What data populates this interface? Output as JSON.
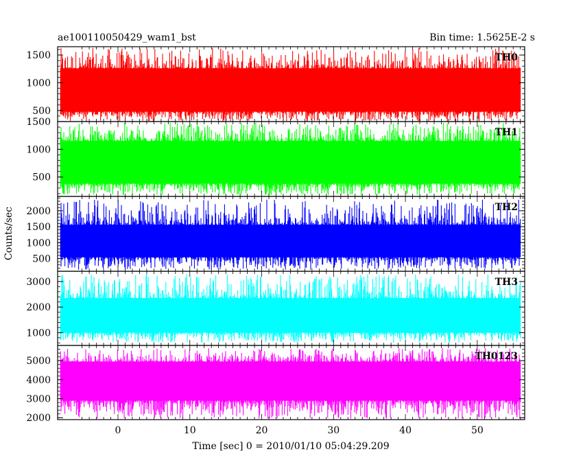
{
  "title_left": "ae100110050429_wam1_bst",
  "title_right": "Bin time: 1.5625E-2 s",
  "ylabel": "Counts/sec",
  "xlabel": "Time [sec] 0 = 2010/01/10 05:04:29.209",
  "colors": {
    "TH0": "#ff0000",
    "TH1": "#00ff00",
    "TH2": "#0000ff",
    "TH3": "#00ffff",
    "TH0123": "#ff00ff"
  },
  "chart_data": {
    "type": "line",
    "x_range": [
      -8.4,
      56.6
    ],
    "data_x_range": [
      -8.0,
      56.0
    ],
    "x_ticks": [
      0,
      10,
      20,
      30,
      40,
      50
    ],
    "panels": [
      {
        "name": "TH0",
        "ylim": [
          300,
          1650
        ],
        "y_ticks": [
          500,
          1000,
          1500
        ],
        "mean": 820,
        "low": 480,
        "high": 1260,
        "max": 1630,
        "min": 300
      },
      {
        "name": "TH1",
        "ylim": [
          150,
          1500
        ],
        "y_ticks": [
          500,
          1000,
          1500
        ],
        "mean": 720,
        "low": 380,
        "high": 1150,
        "max": 1480,
        "min": 170
      },
      {
        "name": "TH2",
        "ylim": [
          100,
          2450
        ],
        "y_ticks": [
          500,
          1000,
          1500,
          2000
        ],
        "mean": 1000,
        "low": 540,
        "high": 1560,
        "max": 2350,
        "min": 150
      },
      {
        "name": "TH3",
        "ylim": [
          500,
          3400
        ],
        "y_ticks": [
          1000,
          2000,
          3000
        ],
        "mean": 1650,
        "low": 1000,
        "high": 2350,
        "max": 3300,
        "min": 600
      },
      {
        "name": "TH0123",
        "ylim": [
          1900,
          5800
        ],
        "y_ticks": [
          2000,
          3000,
          4000,
          5000
        ],
        "mean": 3900,
        "low": 2900,
        "high": 4950,
        "max": 5650,
        "min": 1950
      }
    ]
  }
}
